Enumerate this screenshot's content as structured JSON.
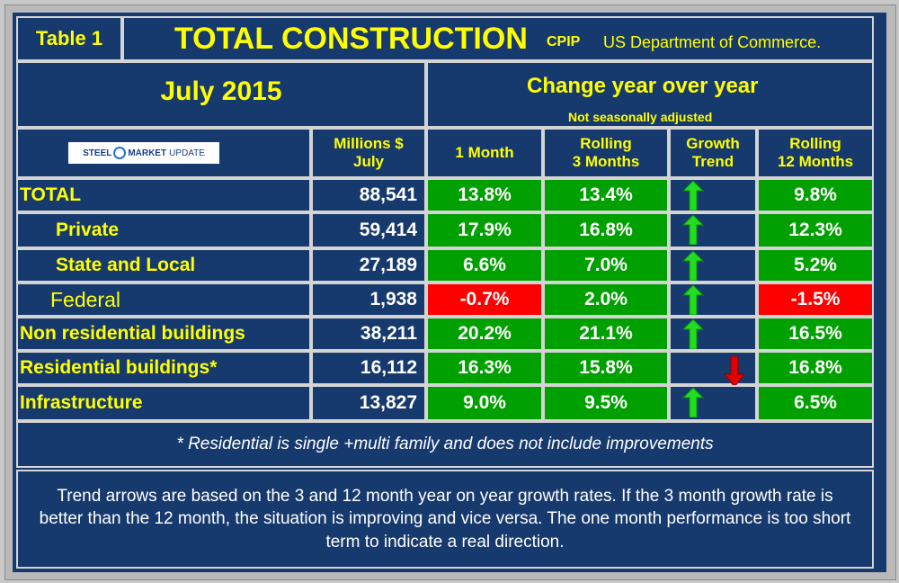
{
  "header": {
    "table_label": "Table 1",
    "title": "TOTAL CONSTRUCTION",
    "title_suffix": "CPIP",
    "source": "US Department of Commerce."
  },
  "period": "July 2015",
  "change_header": "Change year over year",
  "seasonal_note": "Not seasonally adjusted",
  "logo": {
    "text_left": "STEEL",
    "text_mid": "MARKET",
    "text_right": "UPDATE"
  },
  "columns": {
    "millions": [
      "Millions $",
      "July"
    ],
    "one_month": "1 Month",
    "rolling3": [
      "Rolling",
      "3 Months"
    ],
    "growth": [
      "Growth",
      "Trend"
    ],
    "rolling12": [
      "Rolling",
      "12 Months"
    ]
  },
  "rows": [
    {
      "label": "TOTAL",
      "millions": "88,541",
      "one_month": "13.8%",
      "rolling3": "13.4%",
      "trend": "up",
      "rolling12": "9.8%"
    },
    {
      "label": "Private",
      "millions": "59,414",
      "one_month": "17.9%",
      "rolling3": "16.8%",
      "trend": "up",
      "rolling12": "12.3%"
    },
    {
      "label": "State and Local",
      "millions": "27,189",
      "one_month": "6.6%",
      "rolling3": "7.0%",
      "trend": "up",
      "rolling12": "5.2%"
    },
    {
      "label": "Federal",
      "millions": "1,938",
      "one_month": "-0.7%",
      "rolling3": "2.0%",
      "trend": "up",
      "rolling12": "-1.5%"
    },
    {
      "label": "Non residential buildings",
      "millions": "38,211",
      "one_month": "20.2%",
      "rolling3": "21.1%",
      "trend": "up",
      "rolling12": "16.5%"
    },
    {
      "label": "Residential buildings*",
      "millions": "16,112",
      "one_month": "16.3%",
      "rolling3": "15.8%",
      "trend": "down",
      "rolling12": "16.8%"
    },
    {
      "label": "Infrastructure",
      "millions": "13,827",
      "one_month": "9.0%",
      "rolling3": "9.5%",
      "trend": "up",
      "rolling12": "6.5%"
    }
  ],
  "footnote": "* Residential is single +multi family and does not include improvements",
  "explanation": "Trend arrows are based on the 3 and 12 month year on year growth rates. If the 3 month growth rate is better than the 12 month, the situation is improving and vice versa. The one month performance is too short term to indicate a real direction.",
  "colors": {
    "background": "#173a6e",
    "positive": "#00a000",
    "negative": "#ff0000",
    "label": "#ffff00",
    "arrow_up": "#22dd22",
    "arrow_down": "#e00000"
  }
}
